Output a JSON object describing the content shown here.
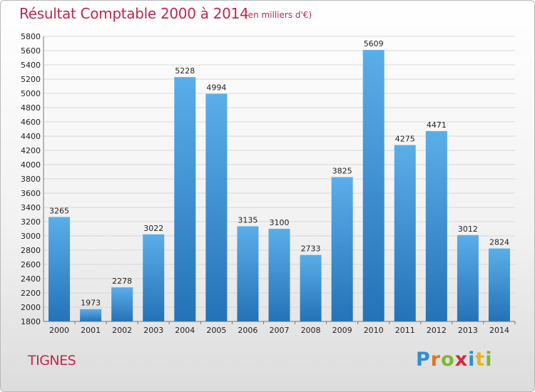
{
  "chart_data": {
    "type": "bar",
    "title": "Résultat Comptable 2000 à 2014",
    "subtitle": "(en milliers d'€)",
    "categories": [
      "2000",
      "2001",
      "2002",
      "2003",
      "2004",
      "2005",
      "2006",
      "2007",
      "2008",
      "2009",
      "2010",
      "2011",
      "2012",
      "2013",
      "2014"
    ],
    "values": [
      3265,
      1973,
      2278,
      3022,
      5228,
      4994,
      3135,
      3100,
      2733,
      3825,
      5609,
      4275,
      4471,
      3012,
      2824
    ],
    "ylim": [
      1800,
      5800
    ],
    "ytick_step": 200,
    "xlabel": "",
    "ylabel": "",
    "bar_color_top": "#5aaee8",
    "bar_color_bottom": "#2472b8"
  },
  "footer": {
    "place": "TIGNES",
    "logo_parts": [
      "P",
      "r",
      "o",
      "x",
      "i",
      "t",
      "i"
    ]
  },
  "colors": {
    "title": "#c0284a",
    "grid": "#d8d8d8",
    "axis": "#777777"
  }
}
